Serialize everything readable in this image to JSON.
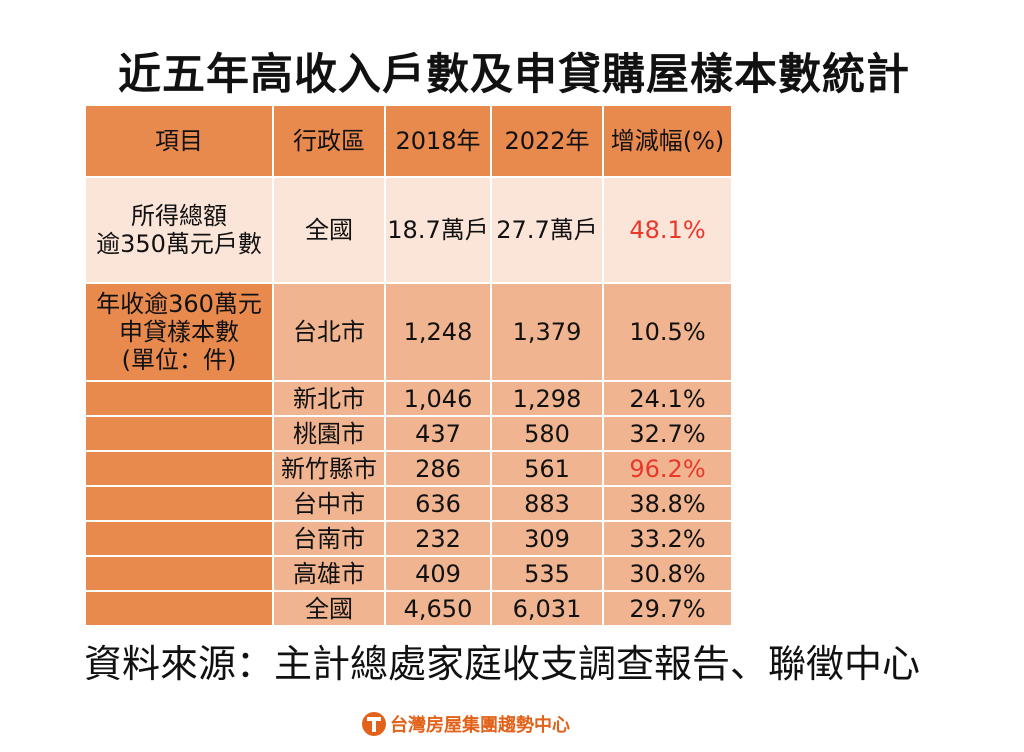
{
  "title": "近五年高收入戶數及申貸購屋樣本數統計",
  "headers": [
    "項目",
    "行政區",
    "2018年",
    "2022年",
    "增減幅(%)"
  ],
  "income_section": {
    "item": "所得總額\n逾350萬元戶數",
    "row": {
      "district": "全國",
      "y2018": "18.7萬戶",
      "y2022": "27.7萬戶",
      "change": "48.1%"
    }
  },
  "loan_section": {
    "item": "年收逾360萬元\n申貸樣本數\n(單位：件)",
    "rows": [
      {
        "district": "台北市",
        "y2018": "1,248",
        "y2022": "1,379",
        "change": "10.5%"
      },
      {
        "district": "新北市",
        "y2018": "1,046",
        "y2022": "1,298",
        "change": "24.1%"
      },
      {
        "district": "桃園市",
        "y2018": "437",
        "y2022": "580",
        "change": "32.7%"
      },
      {
        "district": "新竹縣市",
        "y2018": "286",
        "y2022": "561",
        "change": "96.2%"
      },
      {
        "district": "台中市",
        "y2018": "636",
        "y2022": "883",
        "change": "38.8%"
      },
      {
        "district": "台南市",
        "y2018": "232",
        "y2022": "309",
        "change": "33.2%"
      },
      {
        "district": "高雄市",
        "y2018": "409",
        "y2022": "535",
        "change": "30.8%"
      }
    ],
    "total": {
      "district": "全國",
      "y2018": "4,650",
      "y2022": "6,031",
      "change": "29.7%"
    }
  },
  "source": "資料來源：主計總處家庭收支調查報告、聯徵中心",
  "logo_text": "台灣房屋集團趨勢中心",
  "colors": {
    "header_bg": "#e8894e",
    "light_bg": "#fbe5d8",
    "body_bg": "#f0b590",
    "highlight": "#e8382c",
    "logo": "#e2621b"
  }
}
